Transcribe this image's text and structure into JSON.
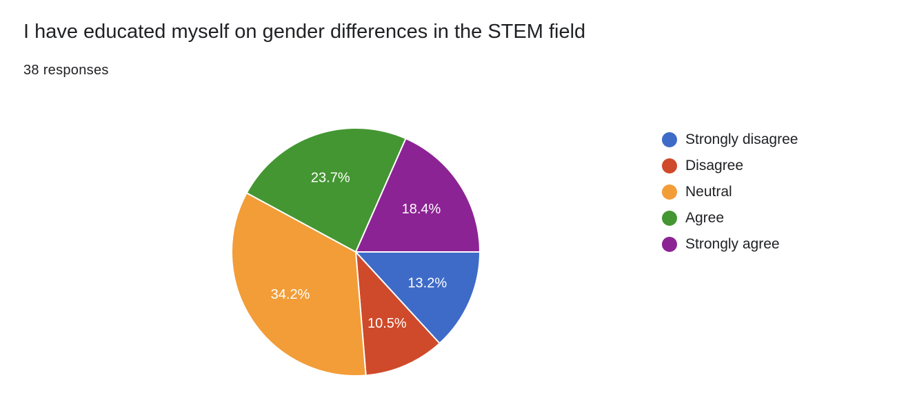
{
  "header": {
    "title": "I have educated myself on gender differences in the STEM field",
    "responses": "38 responses"
  },
  "chart_data": {
    "type": "pie",
    "slices": [
      {
        "label": "Strongly disagree",
        "value": 13.2,
        "display": "13.2%",
        "color": "#3e6bc8"
      },
      {
        "label": "Disagree",
        "value": 10.5,
        "display": "10.5%",
        "color": "#cf4a2a"
      },
      {
        "label": "Neutral",
        "value": 34.2,
        "display": "34.2%",
        "color": "#f29d38"
      },
      {
        "label": "Agree",
        "value": 23.7,
        "display": "23.7%",
        "color": "#449632"
      },
      {
        "label": "Strongly agree",
        "value": 18.4,
        "display": "18.4%",
        "color": "#8c2394"
      }
    ],
    "legend_position": "right",
    "start_direction": "clockwise from 3 o'clock"
  }
}
